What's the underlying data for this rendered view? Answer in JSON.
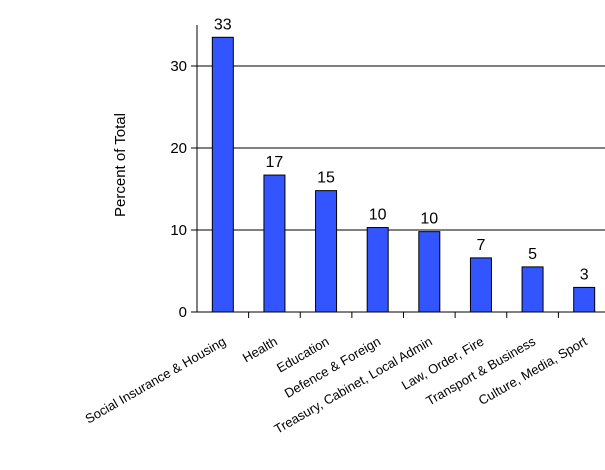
{
  "chart_data": {
    "type": "bar",
    "ylabel": "Percent of Total",
    "xlabel": "",
    "ylim": [
      0,
      35
    ],
    "yticks": [
      0,
      10,
      20,
      30
    ],
    "grid": true,
    "legend": "none",
    "bar_color": "#3355ff",
    "categories": [
      "Social Insurance & Housing",
      "Health",
      "Education",
      "Defence & Foreign",
      "Treasury, Cabinet, Local Admin",
      "Law, Order, Fire",
      "Transport & Business",
      "Culture, Media, Sport"
    ],
    "values": [
      33.5,
      16.7,
      14.8,
      10.3,
      9.8,
      6.6,
      5.5,
      3.0
    ],
    "data_labels": [
      "33",
      "17",
      "15",
      "10",
      "10",
      "7",
      "5",
      "3"
    ]
  }
}
